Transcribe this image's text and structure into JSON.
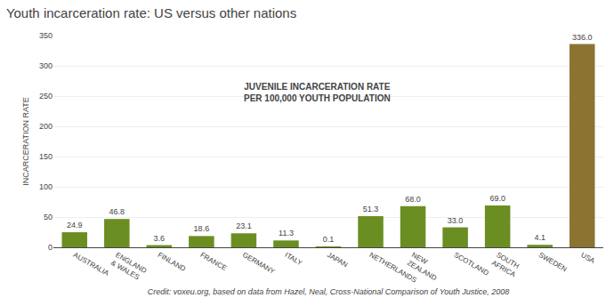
{
  "chart_data": {
    "type": "bar",
    "title": "Youth incarceration rate: US versus other nations",
    "categories": [
      "AUSTRALIA",
      "ENGLAND\n& WALES",
      "FINLAND",
      "FRANCE",
      "GERMANY",
      "ITALY",
      "JAPAN",
      "NETHERLANDS",
      "NEW\nZEALAND",
      "SCOTLAND",
      "SOUTH\nAFRICA",
      "SWEDEN",
      "USA"
    ],
    "values": [
      24.9,
      46.8,
      3.6,
      18.6,
      23.1,
      11.3,
      0.1,
      51.3,
      68.0,
      33.0,
      69.0,
      4.1,
      336.0
    ],
    "value_labels": [
      "24.9",
      "46.8",
      "3.6",
      "18.6",
      "23.1",
      "11.3",
      "0.1",
      "51.3",
      "68.0",
      "33.0",
      "69.0",
      "4.1",
      "336.0"
    ],
    "colors": [
      "#6b8e23",
      "#6b8e23",
      "#6b8e23",
      "#6b8e23",
      "#6b8e23",
      "#6b8e23",
      "#6b8e23",
      "#6b8e23",
      "#6b8e23",
      "#6b8e23",
      "#6b8e23",
      "#6b8e23",
      "#8b7332"
    ],
    "ylabel": "INCARCERATION RATE",
    "ylim": [
      0,
      350
    ],
    "yticks": [
      0,
      50,
      100,
      150,
      200,
      250,
      300,
      350
    ],
    "grid": true,
    "data_labels": true,
    "annotation": "JUVENILE INCARCERATION RATE\nPER 100,000 YOUTH POPULATION",
    "credit": "Credit: voxeu.org, based on data from Hazel, Neal, Cross-National Comparison of Youth Justice, 2008"
  }
}
